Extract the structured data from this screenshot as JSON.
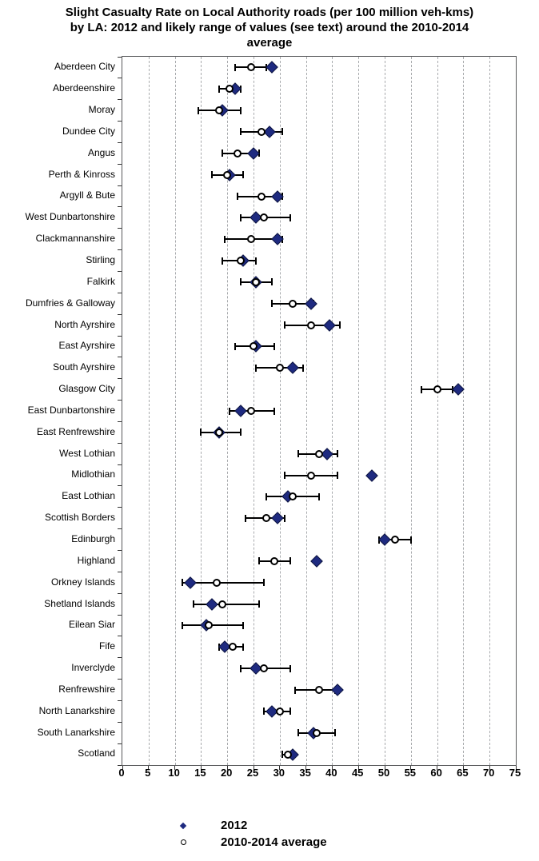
{
  "title_lines": [
    "Slight Casualty Rate on Local Authority roads (per 100 million veh-kms)",
    "by LA: 2012 and likely range of values (see text) around the 2010-2014",
    "average"
  ],
  "colors": {
    "diamond": "#1e2a80",
    "circle_fill": "#ffffff",
    "line": "#000000",
    "gridline": "#a8aaad",
    "axis_border": "#58595b"
  },
  "x_axis": {
    "min": 0,
    "max": 75,
    "tick_step": 5,
    "ticks": [
      0,
      5,
      10,
      15,
      20,
      25,
      30,
      35,
      40,
      45,
      50,
      55,
      60,
      65,
      70,
      75
    ]
  },
  "legend": {
    "items": [
      {
        "symbol": "filled-diamond-icon",
        "label": "2012"
      },
      {
        "symbol": "open-circle-icon",
        "label": "2010-2014 average"
      }
    ]
  },
  "chart_data": {
    "type": "scatter",
    "subtype": "horizontal-dot-plot-with-ranges",
    "title": "Slight Casualty Rate on Local Authority roads (per 100 million veh-kms) by LA: 2012 and likely range of values (see text) around the 2010-2014 average",
    "xlabel": "",
    "ylabel": "",
    "xlim": [
      0,
      75
    ],
    "grid": "vertical-dashed",
    "legend_position": "bottom",
    "categories": [
      "Aberdeen City",
      "Aberdeenshire",
      "Moray",
      "Dundee City",
      "Angus",
      "Perth & Kinross",
      "Argyll & Bute",
      "West Dunbartonshire",
      "Clackmannanshire",
      "Stirling",
      "Falkirk",
      "Dumfries & Galloway",
      "North Ayrshire",
      "East Ayrshire",
      "South Ayrshire",
      "Glasgow City",
      "East Dunbartonshire",
      "East Renfrewshire",
      "West Lothian",
      "Midlothian",
      "East Lothian",
      "Scottish Borders",
      "Edinburgh",
      "Highland",
      "Orkney Islands",
      "Shetland Islands",
      "Eilean Siar",
      "Fife",
      "Inverclyde",
      "Renfrewshire",
      "North Lanarkshire",
      "South Lanarkshire",
      "Scotland"
    ],
    "series": [
      {
        "name": "2012",
        "marker": "filled-diamond",
        "values": [
          28.5,
          21.5,
          19,
          28,
          25,
          20.5,
          29.5,
          25.5,
          29.5,
          23,
          25.5,
          36,
          39.5,
          25.5,
          32.5,
          64,
          22.5,
          18.5,
          39,
          47.5,
          31.5,
          29.5,
          50,
          37,
          13,
          17,
          16,
          19.5,
          25.5,
          41,
          28.5,
          36.5,
          32.5
        ]
      },
      {
        "name": "2010-2014 average",
        "marker": "open-circle",
        "values": [
          24.5,
          20.5,
          18.5,
          26.5,
          22,
          20,
          26.5,
          27,
          24.5,
          22.5,
          25.5,
          32.5,
          36,
          25,
          30,
          60,
          24.5,
          18.5,
          37.5,
          36,
          32.5,
          27.5,
          52,
          29,
          18,
          19,
          16.5,
          21,
          27,
          37.5,
          30,
          37,
          31.5
        ]
      },
      {
        "name": "likely range around 2010-2014 average",
        "marker": "error-bar",
        "low": [
          21.5,
          18.5,
          14.5,
          22.5,
          19,
          17,
          22,
          22.5,
          19.5,
          19,
          22.5,
          28.5,
          31,
          21.5,
          25.5,
          57,
          20.5,
          15,
          33.5,
          31,
          27.5,
          23.5,
          49,
          26,
          11.5,
          13.5,
          11.5,
          18.5,
          22.5,
          33,
          27,
          33.5,
          30.5
        ],
        "high": [
          27.5,
          22.5,
          22.5,
          30.5,
          26,
          23,
          30.5,
          32,
          30.5,
          25.5,
          28.5,
          36.5,
          41.5,
          29,
          34.5,
          63,
          29,
          22.5,
          41,
          41,
          37.5,
          31,
          55,
          32,
          27,
          26,
          23,
          23,
          32,
          40.5,
          32,
          40.5,
          32.5
        ]
      }
    ]
  }
}
